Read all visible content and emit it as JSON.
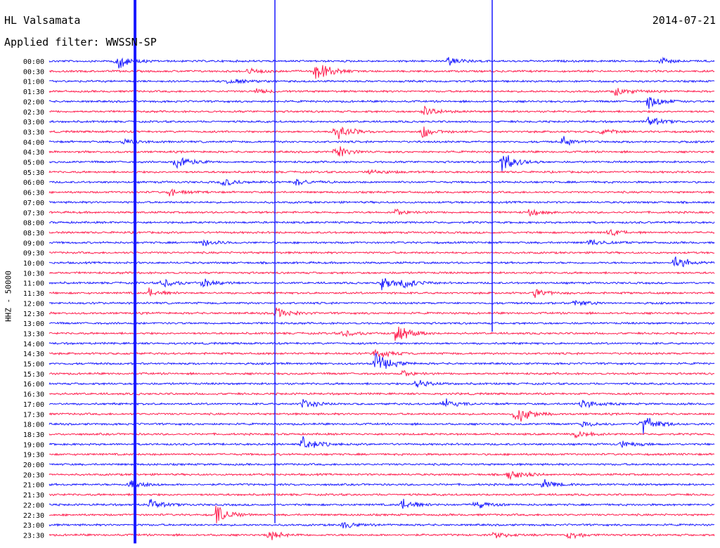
{
  "header": {
    "station": "HL Valsamata",
    "date": "2014-07-21",
    "filter": "Applied filter: WWSSN-SP"
  },
  "chart_data": {
    "type": "line",
    "title": "HL Valsamata",
    "ylabel": "HHZ - 50000",
    "rows": [
      "00:00",
      "00:30",
      "01:00",
      "01:30",
      "02:00",
      "02:30",
      "03:00",
      "03:30",
      "04:00",
      "04:30",
      "05:00",
      "05:30",
      "06:00",
      "06:30",
      "07:00",
      "07:30",
      "08:00",
      "08:30",
      "09:00",
      "09:30",
      "10:00",
      "10:30",
      "11:00",
      "11:30",
      "12:00",
      "12:30",
      "13:00",
      "13:30",
      "14:00",
      "14:30",
      "15:00",
      "15:30",
      "16:00",
      "16:30",
      "17:00",
      "17:30",
      "18:00",
      "18:30",
      "19:00",
      "19:30",
      "20:00",
      "20:30",
      "21:00",
      "21:30",
      "22:00",
      "22:30",
      "23:00",
      "23:30"
    ],
    "row_minutes": 30,
    "colors": [
      "#1a1aff",
      "#ff2050"
    ],
    "events": [
      {
        "row": 0,
        "t": 0.1,
        "amp": 10
      },
      {
        "row": 0,
        "t": 0.6,
        "amp": 5
      },
      {
        "row": 0,
        "t": 0.92,
        "amp": 4
      },
      {
        "row": 1,
        "t": 0.4,
        "amp": 16
      },
      {
        "row": 1,
        "t": 0.3,
        "amp": 3
      },
      {
        "row": 2,
        "t": 0.27,
        "amp": 4
      },
      {
        "row": 3,
        "t": 0.31,
        "amp": 3
      },
      {
        "row": 3,
        "t": 0.85,
        "amp": 6
      },
      {
        "row": 4,
        "t": 0.9,
        "amp": 10
      },
      {
        "row": 5,
        "t": 0.56,
        "amp": 8
      },
      {
        "row": 6,
        "t": 0.9,
        "amp": 6
      },
      {
        "row": 7,
        "t": 0.43,
        "amp": 12
      },
      {
        "row": 7,
        "t": 0.56,
        "amp": 8
      },
      {
        "row": 7,
        "t": 0.83,
        "amp": 4
      },
      {
        "row": 8,
        "t": 0.77,
        "amp": 6
      },
      {
        "row": 8,
        "t": 0.11,
        "amp": 4
      },
      {
        "row": 9,
        "t": 0.43,
        "amp": 8
      },
      {
        "row": 10,
        "t": 0.19,
        "amp": 12
      },
      {
        "row": 10,
        "t": 0.68,
        "amp": 14
      },
      {
        "row": 11,
        "t": 0.48,
        "amp": 4
      },
      {
        "row": 12,
        "t": 0.26,
        "amp": 5
      },
      {
        "row": 12,
        "t": 0.37,
        "amp": 5
      },
      {
        "row": 13,
        "t": 0.18,
        "amp": 5
      },
      {
        "row": 15,
        "t": 0.52,
        "amp": 4
      },
      {
        "row": 15,
        "t": 0.72,
        "amp": 4
      },
      {
        "row": 17,
        "t": 0.84,
        "amp": 4
      },
      {
        "row": 18,
        "t": 0.23,
        "amp": 5
      },
      {
        "row": 18,
        "t": 0.81,
        "amp": 5
      },
      {
        "row": 20,
        "t": 0.94,
        "amp": 10
      },
      {
        "row": 22,
        "t": 0.17,
        "amp": 6
      },
      {
        "row": 22,
        "t": 0.23,
        "amp": 5
      },
      {
        "row": 22,
        "t": 0.5,
        "amp": 8
      },
      {
        "row": 22,
        "t": 0.53,
        "amp": 7
      },
      {
        "row": 23,
        "t": 0.15,
        "amp": 5
      },
      {
        "row": 23,
        "t": 0.73,
        "amp": 5
      },
      {
        "row": 24,
        "t": 0.79,
        "amp": 4
      },
      {
        "row": 25,
        "t": 0.34,
        "amp": 8
      },
      {
        "row": 27,
        "t": 0.44,
        "amp": 5
      },
      {
        "row": 27,
        "t": 0.52,
        "amp": 14
      },
      {
        "row": 29,
        "t": 0.49,
        "amp": 6
      },
      {
        "row": 30,
        "t": 0.49,
        "amp": 14
      },
      {
        "row": 31,
        "t": 0.53,
        "amp": 4
      },
      {
        "row": 32,
        "t": 0.55,
        "amp": 6
      },
      {
        "row": 34,
        "t": 0.38,
        "amp": 6
      },
      {
        "row": 34,
        "t": 0.59,
        "amp": 7
      },
      {
        "row": 34,
        "t": 0.8,
        "amp": 6
      },
      {
        "row": 35,
        "t": 0.7,
        "amp": 14
      },
      {
        "row": 36,
        "t": 0.89,
        "amp": 14
      },
      {
        "row": 36,
        "t": 0.8,
        "amp": 4
      },
      {
        "row": 37,
        "t": 0.79,
        "amp": 5
      },
      {
        "row": 38,
        "t": 0.38,
        "amp": 10
      },
      {
        "row": 38,
        "t": 0.86,
        "amp": 4
      },
      {
        "row": 41,
        "t": 0.69,
        "amp": 8
      },
      {
        "row": 42,
        "t": 0.12,
        "amp": 7
      },
      {
        "row": 42,
        "t": 0.74,
        "amp": 6
      },
      {
        "row": 44,
        "t": 0.15,
        "amp": 6
      },
      {
        "row": 44,
        "t": 0.53,
        "amp": 8
      },
      {
        "row": 44,
        "t": 0.64,
        "amp": 5
      },
      {
        "row": 45,
        "t": 0.25,
        "amp": 12
      },
      {
        "row": 46,
        "t": 0.44,
        "amp": 5
      },
      {
        "row": 47,
        "t": 0.33,
        "amp": 6
      },
      {
        "row": 47,
        "t": 0.67,
        "amp": 4
      },
      {
        "row": 47,
        "t": 0.78,
        "amp": 5
      }
    ]
  }
}
